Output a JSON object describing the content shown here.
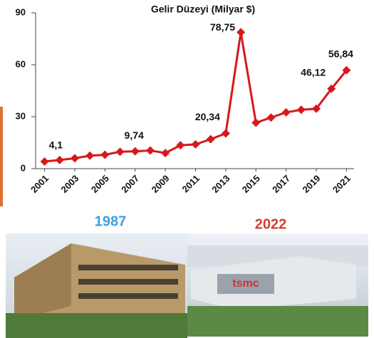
{
  "chart_data": {
    "type": "line",
    "title": "Gelir Düzeyi (Milyar $)",
    "x": [
      2001,
      2002,
      2003,
      2004,
      2005,
      2006,
      2007,
      2008,
      2009,
      2010,
      2011,
      2012,
      2013,
      2014,
      2015,
      2016,
      2017,
      2018,
      2019,
      2020,
      2021
    ],
    "values": [
      4.1,
      5,
      6,
      7.5,
      8,
      9.74,
      10,
      10.5,
      9,
      13.5,
      14,
      17,
      20.34,
      78.75,
      26.5,
      29.5,
      32.5,
      34,
      34.6,
      46.12,
      56.84
    ],
    "value_labels": [
      "4,1",
      null,
      null,
      null,
      null,
      "9,74",
      null,
      null,
      null,
      null,
      null,
      null,
      "20,34",
      "78,75",
      null,
      null,
      null,
      null,
      null,
      "46,12",
      "56,84"
    ],
    "color": "#d7191c",
    "xlim": [
      2000.5,
      2021.5
    ],
    "xticks": [
      2001,
      2003,
      2005,
      2007,
      2009,
      2011,
      2013,
      2015,
      2017,
      2019,
      2021
    ],
    "ylim": [
      0,
      90
    ],
    "yticks": [
      0,
      30,
      60,
      90
    ],
    "annotations": [
      "1987",
      "2022"
    ]
  }
}
